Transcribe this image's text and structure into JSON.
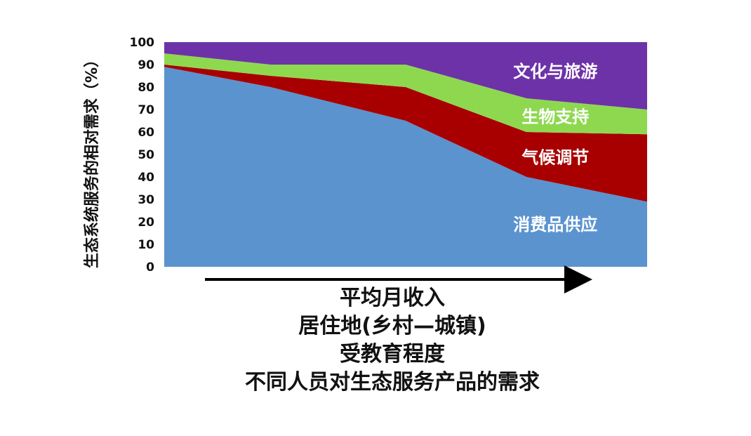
{
  "chart_data": {
    "type": "area",
    "stacked": true,
    "ylabel": "生态系统服务的相对需求（%）",
    "ylim": [
      0,
      100
    ],
    "yticks": [
      0,
      10,
      20,
      30,
      40,
      50,
      60,
      70,
      80,
      90,
      100
    ],
    "x": [
      0,
      22,
      50,
      75,
      100
    ],
    "grid": false,
    "series": [
      {
        "name": "消费品供应",
        "color": "#5b93cf",
        "values": [
          89,
          80,
          65,
          40,
          29
        ]
      },
      {
        "name": "气候调节",
        "color": "#a80000",
        "values": [
          1,
          5,
          15,
          20,
          30
        ]
      },
      {
        "name": "生物支持",
        "color": "#8ed850",
        "values": [
          5,
          5,
          10,
          15,
          11
        ]
      },
      {
        "name": "文化与旅游",
        "color": "#6d32a8",
        "values": [
          5,
          10,
          10,
          25,
          30
        ]
      }
    ]
  },
  "captions": [
    "平均月收入",
    "居住地(乡村—城镇)",
    "受教育程度",
    "不同人员对生态服务产品的需求"
  ]
}
